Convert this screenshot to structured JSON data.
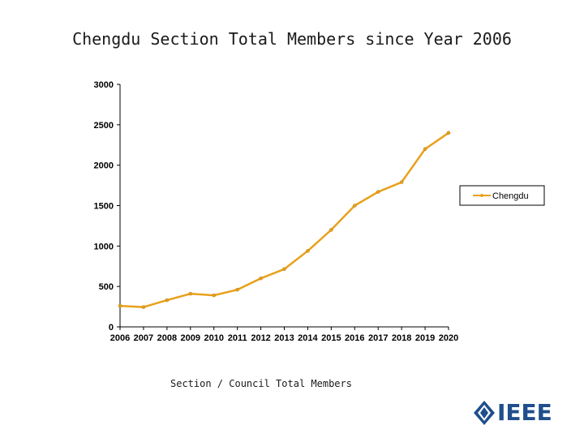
{
  "chart_data": {
    "type": "line",
    "title": "Chengdu Section Total Members since Year 2006",
    "xlabel": "Section / Council Total Members",
    "ylabel": "",
    "categories": [
      "2006",
      "2007",
      "2008",
      "2009",
      "2010",
      "2011",
      "2012",
      "2013",
      "2014",
      "2015",
      "2016",
      "2017",
      "2018",
      "2019",
      "2020"
    ],
    "series": [
      {
        "name": "Chengdu",
        "values": [
          260,
          245,
          330,
          410,
          390,
          460,
          600,
          715,
          940,
          1200,
          1500,
          1670,
          1790,
          2200,
          2400
        ]
      }
    ],
    "ylim": [
      0,
      3000
    ],
    "yticks": [
      0,
      500,
      1000,
      1500,
      2000,
      2500,
      3000
    ],
    "legend": "right",
    "grid": false,
    "line_color": "#e8a11c"
  },
  "logo": {
    "text": "IEEE",
    "color": "#1f4e8c"
  }
}
